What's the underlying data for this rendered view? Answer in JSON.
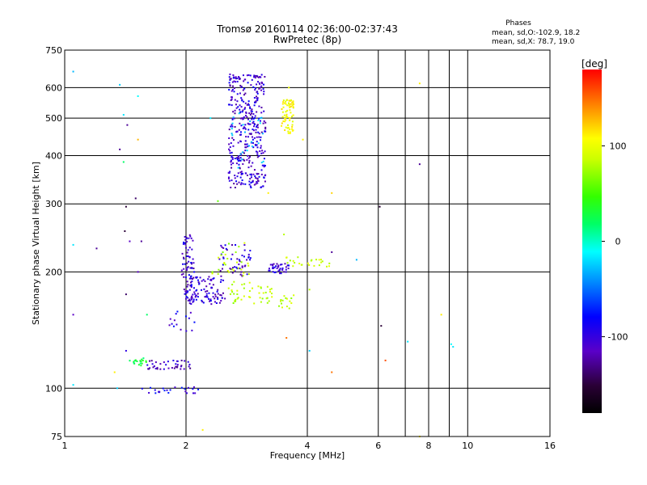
{
  "chart_data": {
    "type": "scatter",
    "title": "Tromsø 20160114 02:36:00-02:37:43",
    "subtitle": "RwPretec (8p)",
    "xlabel": "Frequency [MHz]",
    "ylabel": "Stationary phase Virtual Height [km]",
    "x_scale": "log",
    "y_scale": "log",
    "xlim": [
      1,
      16
    ],
    "ylim": [
      75,
      750
    ],
    "x_ticks": [
      1,
      2,
      4,
      6,
      8,
      10,
      16
    ],
    "y_ticks": [
      75,
      100,
      200,
      300,
      400,
      500,
      600,
      750
    ],
    "grid": true,
    "phase_info": {
      "title": "Phases",
      "line_o": "mean, sd,O:-102.9, 18.2",
      "line_x": "mean, sd,X:  78.7, 19.0"
    },
    "colorbar": {
      "label": "[deg]",
      "range": [
        -180,
        180
      ],
      "ticks": [
        100,
        0,
        -100
      ]
    },
    "series": [
      {
        "clusters": [
          {
            "x": [
              2.55,
              3.15
            ],
            "y": [
              330,
              650
            ],
            "phase": -115,
            "n": 380
          },
          {
            "x": [
              2.55,
              3.15
            ],
            "y": [
              360,
              520
            ],
            "phase": -30,
            "n": 25
          },
          {
            "x": [
              3.45,
              3.7
            ],
            "y": [
              455,
              560
            ],
            "phase": 105,
            "n": 70
          },
          {
            "x": [
              1.95,
              2.1
            ],
            "y": [
              165,
              250
            ],
            "phase": -115,
            "n": 80
          },
          {
            "x": [
              2.05,
              2.5
            ],
            "y": [
              165,
              195
            ],
            "phase": -115,
            "n": 90
          },
          {
            "x": [
              2.55,
              3.3
            ],
            "y": [
              165,
              190
            ],
            "phase": 80,
            "n": 45
          },
          {
            "x": [
              2.4,
              2.9
            ],
            "y": [
              195,
              235
            ],
            "phase": -115,
            "n": 50
          },
          {
            "x": [
              3.2,
              3.6
            ],
            "y": [
              198,
              210
            ],
            "phase": -115,
            "n": 40
          },
          {
            "x": [
              2.3,
              2.9
            ],
            "y": [
              195,
              240
            ],
            "phase": 80,
            "n": 30
          },
          {
            "x": [
              3.5,
              4.6
            ],
            "y": [
              205,
              220
            ],
            "phase": 90,
            "n": 25
          },
          {
            "x": [
              1.6,
              2.05
            ],
            "y": [
              112,
              118
            ],
            "phase": -120,
            "n": 40
          },
          {
            "x": [
              1.45,
              1.6
            ],
            "y": [
              114,
              120
            ],
            "phase": 30,
            "n": 20
          },
          {
            "x": [
              1.55,
              2.15
            ],
            "y": [
              97,
              101
            ],
            "phase": -105,
            "n": 25
          },
          {
            "x": [
              1.8,
              2.1
            ],
            "y": [
              140,
              165
            ],
            "phase": -110,
            "n": 15
          },
          {
            "x": [
              3.4,
              3.7
            ],
            "y": [
              160,
              175
            ],
            "phase": 80,
            "n": 15
          }
        ],
        "sporadic": [
          {
            "x": 1.05,
            "y": 660,
            "phase": -40
          },
          {
            "x": 1.05,
            "y": 235,
            "phase": -20
          },
          {
            "x": 1.05,
            "y": 155,
            "phase": -120
          },
          {
            "x": 1.05,
            "y": 102,
            "phase": -20
          },
          {
            "x": 1.2,
            "y": 230,
            "phase": -130
          },
          {
            "x": 1.37,
            "y": 610,
            "phase": -30
          },
          {
            "x": 1.4,
            "y": 510,
            "phase": -20
          },
          {
            "x": 1.43,
            "y": 480,
            "phase": -130
          },
          {
            "x": 1.37,
            "y": 415,
            "phase": -130
          },
          {
            "x": 1.4,
            "y": 385,
            "phase": 20
          },
          {
            "x": 1.42,
            "y": 295,
            "phase": -150
          },
          {
            "x": 1.41,
            "y": 255,
            "phase": -150
          },
          {
            "x": 1.45,
            "y": 240,
            "phase": -120
          },
          {
            "x": 1.42,
            "y": 175,
            "phase": -140
          },
          {
            "x": 1.42,
            "y": 125,
            "phase": -110
          },
          {
            "x": 1.5,
            "y": 310,
            "phase": -140
          },
          {
            "x": 1.55,
            "y": 240,
            "phase": -130
          },
          {
            "x": 1.52,
            "y": 200,
            "phase": -120
          },
          {
            "x": 1.52,
            "y": 440,
            "phase": 130
          },
          {
            "x": 1.52,
            "y": 570,
            "phase": -10
          },
          {
            "x": 1.6,
            "y": 155,
            "phase": 20
          },
          {
            "x": 1.33,
            "y": 110,
            "phase": 110
          },
          {
            "x": 1.35,
            "y": 100,
            "phase": -30
          },
          {
            "x": 2.3,
            "y": 500,
            "phase": -20
          },
          {
            "x": 2.4,
            "y": 305,
            "phase": 60
          },
          {
            "x": 2.2,
            "y": 78,
            "phase": 110
          },
          {
            "x": 3.2,
            "y": 320,
            "phase": 110
          },
          {
            "x": 3.5,
            "y": 250,
            "phase": 80
          },
          {
            "x": 3.6,
            "y": 600,
            "phase": 100
          },
          {
            "x": 3.9,
            "y": 440,
            "phase": 110
          },
          {
            "x": 3.55,
            "y": 135,
            "phase": 150
          },
          {
            "x": 4.05,
            "y": 180,
            "phase": 80
          },
          {
            "x": 4.05,
            "y": 125,
            "phase": -30
          },
          {
            "x": 4.6,
            "y": 320,
            "phase": 120
          },
          {
            "x": 4.6,
            "y": 225,
            "phase": -130
          },
          {
            "x": 4.6,
            "y": 110,
            "phase": 150
          },
          {
            "x": 5.3,
            "y": 215,
            "phase": -40
          },
          {
            "x": 6.05,
            "y": 295,
            "phase": -150
          },
          {
            "x": 6.1,
            "y": 145,
            "phase": -150
          },
          {
            "x": 6.25,
            "y": 118,
            "phase": 160
          },
          {
            "x": 7.1,
            "y": 132,
            "phase": -20
          },
          {
            "x": 7.6,
            "y": 615,
            "phase": 110
          },
          {
            "x": 7.6,
            "y": 380,
            "phase": -130
          },
          {
            "x": 7.6,
            "y": 75,
            "phase": 110
          },
          {
            "x": 8.6,
            "y": 155,
            "phase": 110
          },
          {
            "x": 9.1,
            "y": 130,
            "phase": -10
          },
          {
            "x": 9.2,
            "y": 128,
            "phase": -20
          }
        ]
      }
    ]
  }
}
